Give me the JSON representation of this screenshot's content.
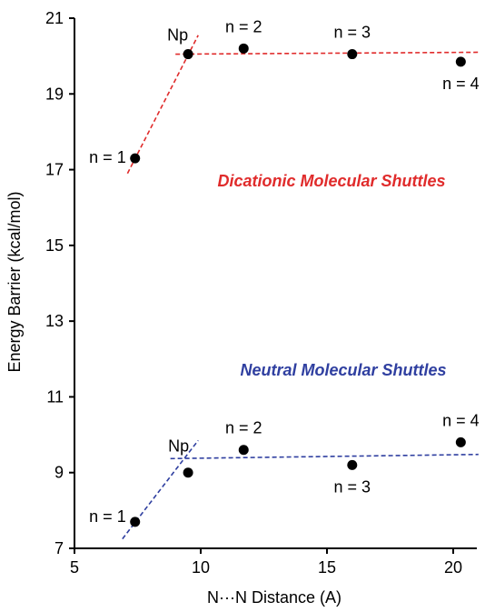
{
  "chart_data": {
    "type": "scatter",
    "xlabel": "N···N Distance (A)",
    "ylabel": "Energy Barrier (kcal/mol)",
    "xlim": [
      5,
      21
    ],
    "ylim": [
      7,
      21
    ],
    "x_ticks": [
      5,
      10,
      15,
      20
    ],
    "y_ticks": [
      7,
      9,
      11,
      13,
      15,
      17,
      19,
      21
    ],
    "grid": false,
    "legend": "none",
    "series": [
      {
        "name": "Dicationic Molecular Shuttles",
        "color": "#e02b2b",
        "marker_color": "#000000",
        "points": [
          {
            "x": 7.4,
            "y": 17.3,
            "label": "n = 1"
          },
          {
            "x": 9.5,
            "y": 20.05,
            "label": "Np"
          },
          {
            "x": 11.7,
            "y": 20.2,
            "label": "n = 2"
          },
          {
            "x": 16.0,
            "y": 20.05,
            "label": "n = 3"
          },
          {
            "x": 20.3,
            "y": 19.85,
            "label": "n = 4"
          }
        ],
        "trendlines": [
          {
            "from": [
              7.1,
              16.9
            ],
            "to": [
              9.9,
              20.55
            ]
          },
          {
            "from": [
              9.0,
              20.05
            ],
            "to": [
              21.0,
              20.1
            ]
          }
        ]
      },
      {
        "name": "Neutral Molecular Shuttles",
        "color": "#2f3fa0",
        "marker_color": "#000000",
        "points": [
          {
            "x": 7.4,
            "y": 7.7,
            "label": "n = 1"
          },
          {
            "x": 9.5,
            "y": 9.0,
            "label": "Np"
          },
          {
            "x": 11.7,
            "y": 9.6,
            "label": "n = 2"
          },
          {
            "x": 16.0,
            "y": 9.2,
            "label": "n = 3"
          },
          {
            "x": 20.3,
            "y": 9.8,
            "label": "n = 4"
          }
        ],
        "trendlines": [
          {
            "from": [
              6.9,
              7.25
            ],
            "to": [
              9.9,
              9.85
            ]
          },
          {
            "from": [
              8.8,
              9.37
            ],
            "to": [
              21.0,
              9.48
            ]
          }
        ]
      }
    ]
  }
}
